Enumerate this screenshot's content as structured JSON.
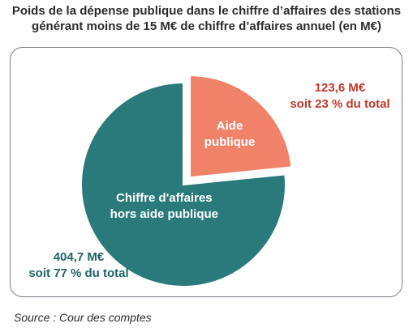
{
  "chart_data": {
    "type": "pie",
    "title_lines": [
      "Poids de la dépense publique dans le chiffre d’affaires des stations",
      "générant moins de 15 M€ de chiffre d’affaires annuel (en M€)"
    ],
    "slices": [
      {
        "label_lines": [
          "Aide",
          "publique"
        ],
        "value": 123.6,
        "percent": 23,
        "color": "#f0826a",
        "annotation_lines": [
          "123,6 M€",
          "soit 23 % du total"
        ],
        "annotation_color": "#c0392b",
        "exploded": true
      },
      {
        "label_lines": [
          "Chiffre d'affaires",
          "hors aide publique"
        ],
        "value": 404.7,
        "percent": 77,
        "color": "#2a7a7c",
        "annotation_lines": [
          "404,7 M€",
          "soit 77 % du total"
        ],
        "annotation_color": "#1f6466",
        "exploded": false
      }
    ],
    "source": "Source : Cour des comptes"
  }
}
